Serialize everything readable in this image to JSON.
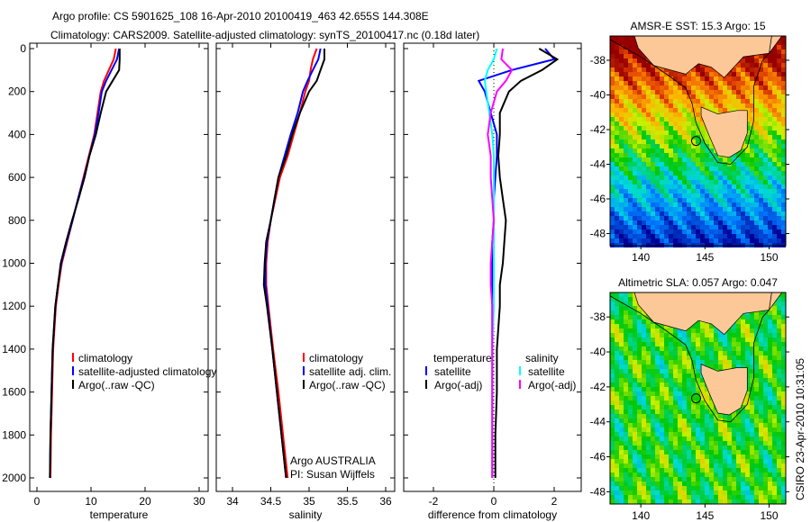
{
  "title_line1": "Argo profile: CS 5901625_108 16-Apr-2010 20100419_463 42.655S 144.308E",
  "title_line2": "Climatology: CARS2009. Satellite-adjusted climatology: synTS_20100417.nc (0.18d later)",
  "side_label": "CSIRO 23-Apr-2010 10:31:05",
  "credit_line1": "Argo AUSTRALIA",
  "credit_line2": "PI: Susan Wijffels",
  "colors": {
    "climatology": "#ff0000",
    "satellite": "#0000ff",
    "argo": "#000000",
    "sal_satellite": "#00ffff",
    "sal_argo": "#ff00ff",
    "land": "#fcc898"
  },
  "chart_data": [
    {
      "type": "line",
      "xlabel": "temperature",
      "ylabel": "",
      "xlim": [
        -2,
        32
      ],
      "ylim": [
        2050,
        0
      ],
      "xticks": [
        "0",
        "10",
        "20",
        "30"
      ],
      "yticks": [
        "0",
        "200",
        "400",
        "600",
        "800",
        "1000",
        "1200",
        "1400",
        "1600",
        "1800",
        "2000"
      ],
      "depth": [
        0,
        50,
        100,
        150,
        200,
        300,
        400,
        500,
        600,
        700,
        800,
        900,
        1000,
        1100,
        1200,
        1400,
        1600,
        1800,
        2000
      ],
      "series": [
        {
          "name": "climatology",
          "color": "#ff0000",
          "values": [
            14.6,
            14.2,
            13.3,
            12.4,
            11.8,
            11.2,
            10.6,
            9.6,
            8.6,
            7.6,
            6.6,
            5.6,
            4.6,
            4.0,
            3.5,
            3.0,
            2.8,
            2.6,
            2.5
          ]
        },
        {
          "name": "satellite-adjusted climatology",
          "color": "#0000ff",
          "values": [
            15.2,
            14.8,
            13.8,
            12.8,
            12.0,
            11.4,
            10.7,
            9.7,
            8.7,
            7.6,
            6.6,
            5.5,
            4.5,
            3.9,
            3.4,
            2.9,
            2.7,
            2.5,
            2.4
          ]
        },
        {
          "name": "Argo(..raw -QC)",
          "color": "#000000",
          "values": [
            15.3,
            15.3,
            15.2,
            14.0,
            12.8,
            11.8,
            10.9,
            9.7,
            8.8,
            7.7,
            6.5,
            5.4,
            4.4,
            3.9,
            3.4,
            2.9,
            2.7,
            2.5,
            2.4
          ]
        }
      ],
      "legend": [
        "climatology",
        "satellite-adjusted climatology",
        "Argo(..raw -QC)"
      ]
    },
    {
      "type": "line",
      "xlabel": "salinity",
      "ylabel": "",
      "xlim": [
        33.85,
        36.1
      ],
      "ylim": [
        2050,
        0
      ],
      "xticks": [
        "34",
        "34.5",
        "35",
        "35.5",
        "36"
      ],
      "depth": [
        0,
        50,
        100,
        150,
        200,
        300,
        400,
        500,
        600,
        700,
        800,
        900,
        1000,
        1100,
        1200,
        1400,
        1600,
        1800,
        2000
      ],
      "series": [
        {
          "name": "climatology",
          "color": "#ff0000",
          "values": [
            35.1,
            35.05,
            35.02,
            35.0,
            34.95,
            34.88,
            34.8,
            34.72,
            34.62,
            34.56,
            34.5,
            34.46,
            34.44,
            34.44,
            34.47,
            34.53,
            34.6,
            34.66,
            34.72
          ]
        },
        {
          "name": "satellite adj. clim.",
          "color": "#0000ff",
          "values": [
            35.15,
            35.12,
            35.05,
            34.98,
            34.92,
            34.85,
            34.76,
            34.68,
            34.6,
            34.55,
            34.5,
            34.45,
            34.43,
            34.43,
            34.46,
            34.52,
            34.58,
            34.64,
            34.7
          ]
        },
        {
          "name": "Argo(..raw -QC)",
          "color": "#000000",
          "values": [
            35.2,
            35.2,
            35.15,
            35.1,
            35.0,
            34.88,
            34.78,
            34.7,
            34.6,
            34.55,
            34.5,
            34.44,
            34.42,
            34.41,
            34.45,
            34.52,
            34.58,
            34.64,
            34.7
          ]
        }
      ],
      "legend": [
        "climatology",
        "satellite adj. clim.",
        "Argo(..raw -QC)"
      ]
    },
    {
      "type": "line",
      "xlabel": "difference from climatology",
      "ylabel": "",
      "xlim": [
        -3,
        3
      ],
      "ylim": [
        2050,
        0
      ],
      "xticks": [
        "-2",
        "0",
        "2"
      ],
      "depth": [
        0,
        50,
        100,
        150,
        200,
        300,
        400,
        500,
        600,
        700,
        800,
        900,
        1000,
        1100,
        1200,
        1400,
        1600,
        1800,
        2000
      ],
      "series": [
        {
          "name": "temperature satellite",
          "color": "#0000ff",
          "values": [
            1.7,
            2.0,
            0.6,
            -0.5,
            -0.3,
            -0.1,
            0.1,
            0.1,
            0.05,
            0.0,
            0.0,
            -0.05,
            -0.05,
            -0.05,
            -0.05,
            -0.05,
            -0.05,
            -0.05,
            -0.05
          ]
        },
        {
          "name": "temperature Argo(-adj)",
          "color": "#000000",
          "values": [
            1.5,
            2.1,
            1.6,
            0.9,
            0.5,
            0.2,
            0.2,
            0.15,
            0.2,
            0.3,
            0.4,
            0.35,
            0.3,
            0.2,
            0.2,
            0.1,
            0.1,
            0.05,
            0.05
          ]
        },
        {
          "name": "salinity satellite",
          "color": "#00ffff",
          "values": [
            0.1,
            0.0,
            -0.2,
            -0.3,
            -0.25,
            -0.15,
            -0.05,
            0.0,
            0.0,
            0.0,
            0.0,
            0.0,
            0.0,
            0.0,
            0.0,
            -0.05,
            -0.05,
            -0.05,
            -0.05
          ]
        },
        {
          "name": "salinity Argo(-adj)",
          "color": "#ff00ff",
          "values": [
            0.3,
            0.25,
            0.6,
            0.4,
            0.1,
            -0.1,
            -0.2,
            -0.1,
            -0.1,
            -0.05,
            0.0,
            -0.05,
            -0.1,
            -0.1,
            -0.05,
            -0.05,
            -0.05,
            -0.05,
            -0.05
          ]
        }
      ],
      "legend_headers": [
        "temperature",
        "salinity"
      ],
      "legend": [
        "satellite",
        "Argo(-adj)",
        "satellite",
        "Argo(-adj)"
      ]
    },
    {
      "type": "heatmap",
      "title": "AMSR-E SST: 15.3 Argo: 15",
      "xticks": [
        "140",
        "145",
        "150"
      ],
      "yticks": [
        "-38",
        "-40",
        "-42",
        "-44",
        "-46",
        "-48"
      ],
      "xlim": [
        137.6,
        151.3
      ],
      "ylim": [
        -48.7,
        -36.6
      ],
      "marker": {
        "lon": 144.308,
        "lat": -42.655
      }
    },
    {
      "type": "heatmap",
      "title": "Altimetric SLA: 0.057 Argo: 0.047",
      "xticks": [
        "140",
        "145",
        "150"
      ],
      "yticks": [
        "-38",
        "-40",
        "-42",
        "-44",
        "-46",
        "-48"
      ],
      "xlim": [
        137.6,
        151.3
      ],
      "ylim": [
        -48.7,
        -36.6
      ],
      "marker": {
        "lon": 144.308,
        "lat": -42.655
      }
    }
  ]
}
